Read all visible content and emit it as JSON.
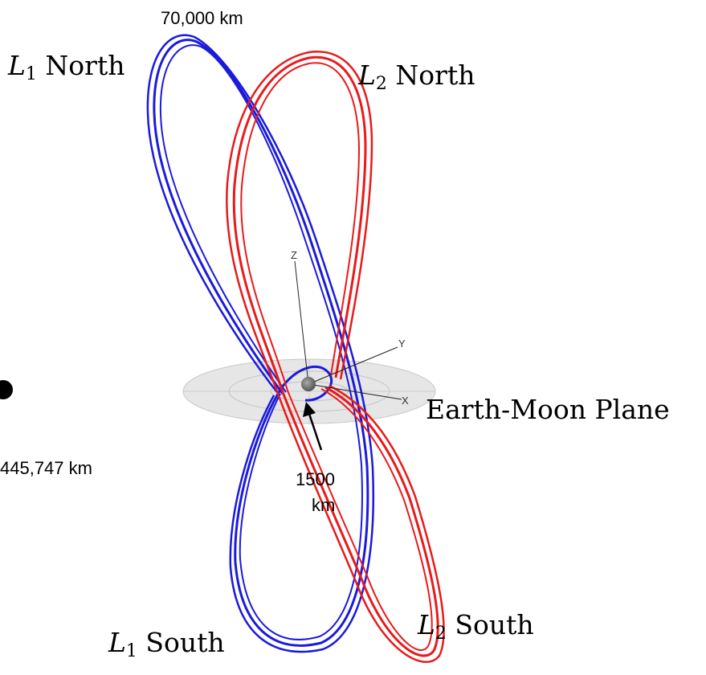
{
  "labels": {
    "dist_top": "70,000 km",
    "dist_left": "445,747 km",
    "dist_center_1": "1500",
    "dist_center_2": "km",
    "l1_north": {
      "sym": "L",
      "sub": "1",
      "word": "North"
    },
    "l2_north": {
      "sym": "L",
      "sub": "2",
      "word": "North"
    },
    "l1_south": {
      "sym": "L",
      "sub": "1",
      "word": "South"
    },
    "l2_south": {
      "sym": "L",
      "sub": "2",
      "word": "South"
    },
    "plane": "Earth-Moon Plane",
    "axis_z": "Z",
    "axis_y": "Y",
    "axis_x": "X"
  },
  "colors": {
    "l1_orbit": "#1a1adc",
    "l2_orbit": "#e81a1a",
    "plane": "#e6e6e6",
    "moon": "#777777",
    "earth": "#000000"
  }
}
